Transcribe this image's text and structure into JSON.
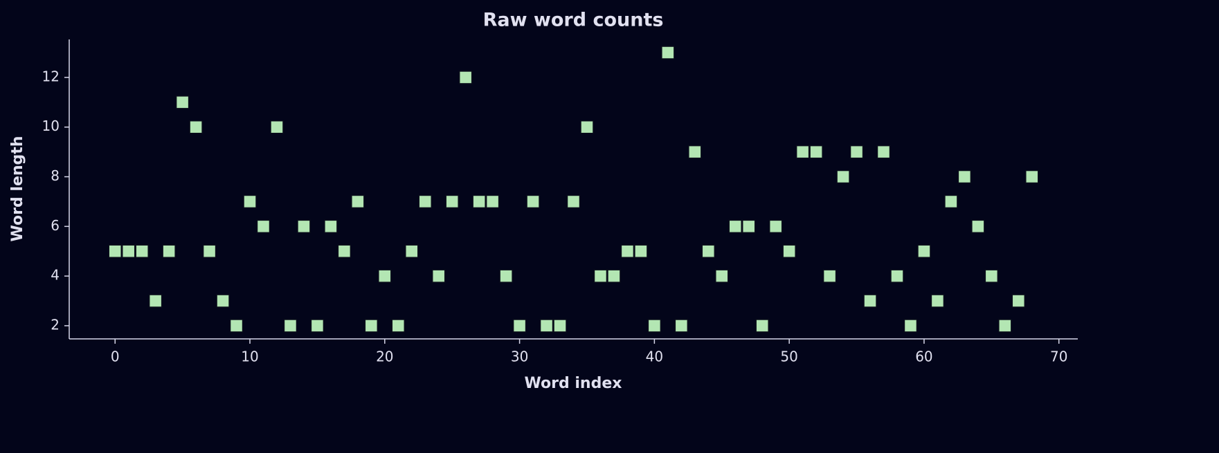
{
  "chart_data": {
    "type": "scatter",
    "title": "Raw word counts",
    "xlabel": "Word index",
    "ylabel": "Word length",
    "x": [
      0,
      1,
      2,
      3,
      4,
      5,
      6,
      7,
      8,
      9,
      10,
      11,
      12,
      13,
      14,
      15,
      16,
      17,
      18,
      19,
      20,
      21,
      22,
      23,
      24,
      25,
      26,
      27,
      28,
      29,
      30,
      31,
      32,
      33,
      34,
      35,
      36,
      37,
      38,
      39,
      40,
      41,
      42,
      43,
      44,
      45,
      46,
      47,
      48,
      49,
      50,
      51,
      52,
      53,
      54,
      55,
      56,
      57,
      58,
      59,
      60,
      61,
      62,
      63,
      64,
      65,
      66,
      67,
      68
    ],
    "values": [
      5,
      5,
      5,
      3,
      5,
      11,
      10,
      5,
      3,
      2,
      7,
      6,
      10,
      2,
      6,
      2,
      6,
      5,
      7,
      2,
      4,
      2,
      5,
      7,
      4,
      7,
      12,
      7,
      7,
      4,
      2,
      7,
      2,
      2,
      7,
      10,
      4,
      4,
      5,
      5,
      2,
      13,
      2,
      9,
      5,
      4,
      6,
      6,
      2,
      6,
      5,
      9,
      9,
      4,
      8,
      9,
      3,
      9,
      4,
      2,
      5,
      3,
      7,
      8,
      6,
      4,
      2,
      3,
      8
    ],
    "color": "#b3e6b3",
    "xlim": [
      -3.4,
      71.4
    ],
    "xticks": [
      0,
      10,
      20,
      30,
      40,
      50,
      60,
      70
    ],
    "ylim": [
      1.47,
      13.53
    ],
    "yticks": [
      2,
      4,
      6,
      8,
      10,
      12
    ]
  }
}
